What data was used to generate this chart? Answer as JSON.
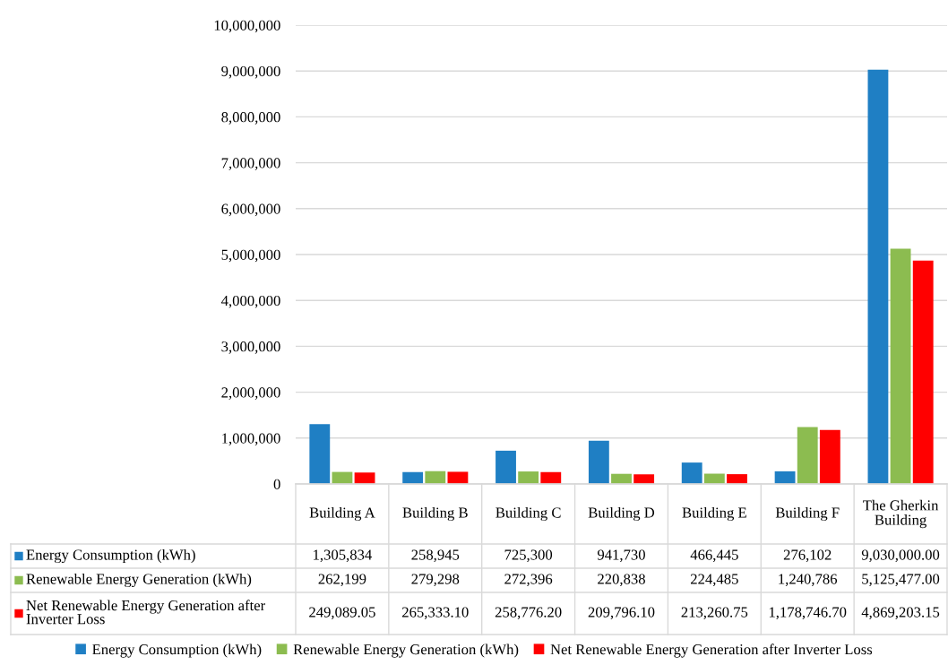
{
  "chart_data": {
    "type": "bar",
    "categories": [
      "Building A",
      "Building B",
      "Building C",
      "Building D",
      "Building E",
      "Building F",
      "The Gherkin Building"
    ],
    "series": [
      {
        "name": "Energy Consumption (kWh)",
        "color": "#1f7fc4",
        "values": [
          1305834,
          258945,
          725300,
          941730,
          466445,
          276102,
          9030000.0
        ],
        "value_labels": [
          "1,305,834",
          "258,945",
          "725,300",
          "941,730",
          "466,445",
          "276,102",
          "9,030,000.00"
        ]
      },
      {
        "name": "Renewable Energy Generation (kWh)",
        "color": "#8cbc50",
        "values": [
          262199,
          279298,
          272396,
          220838,
          224485,
          1240786,
          5125477.0
        ],
        "value_labels": [
          "262,199",
          "279,298",
          "272,396",
          "220,838",
          "224,485",
          "1,240,786",
          "5,125,477.00"
        ]
      },
      {
        "name": "Net Renewable Energy Generation after Inverter Loss",
        "color": "#ff0000",
        "values": [
          249089.05,
          265333.1,
          258776.2,
          209796.1,
          213260.75,
          1178746.7,
          4869203.15
        ],
        "value_labels": [
          "249,089.05",
          "265,333.10",
          "258,776.20",
          "209,796.10",
          "213,260.75",
          "1,178,746.70",
          "4,869,203.15"
        ]
      }
    ],
    "ylim": [
      0,
      10000000
    ],
    "yticks": [
      0,
      {
        "value": 1000000,
        "label": "1,000,000"
      },
      {
        "value": 2000000,
        "label": "2,000,000"
      },
      {
        "value": 3000000,
        "label": "3,000,000"
      },
      {
        "value": 4000000,
        "label": "4,000,000"
      },
      {
        "value": 5000000,
        "label": "5,000,000"
      },
      {
        "value": 6000000,
        "label": "6,000,000"
      },
      {
        "value": 7000000,
        "label": "7,000,000"
      },
      {
        "value": 8000000,
        "label": "8,000,000"
      },
      {
        "value": 9000000,
        "label": "9,000,000"
      },
      {
        "value": 10000000,
        "label": "10,000,000"
      }
    ],
    "grid": "y",
    "legend": "bottom"
  }
}
